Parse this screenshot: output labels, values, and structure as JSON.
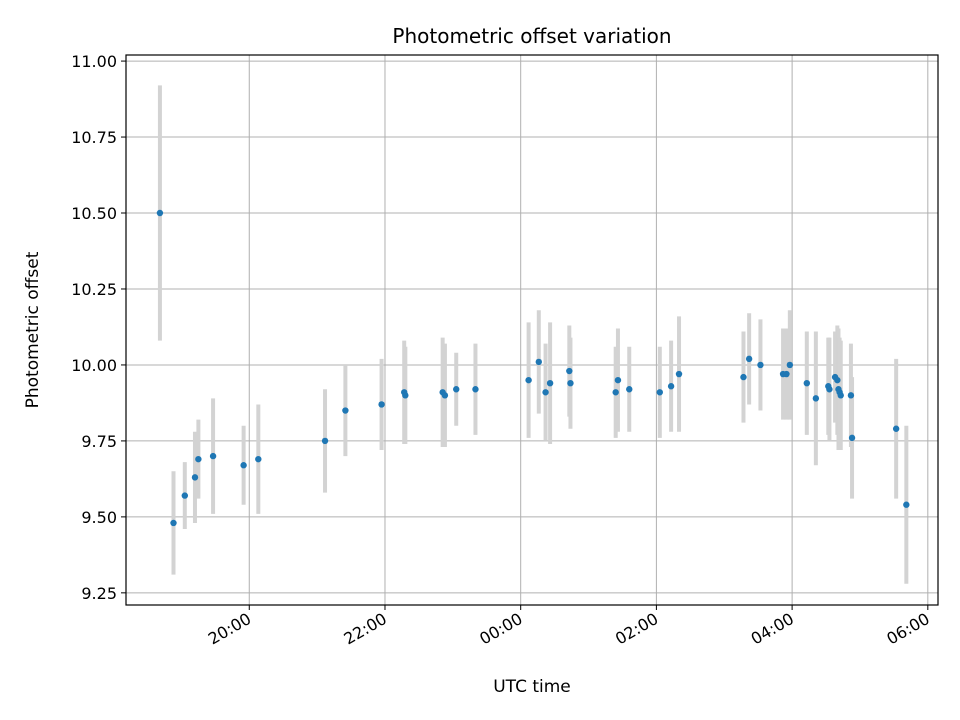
{
  "chart_data": {
    "type": "scatter",
    "title": "Photometric offset variation",
    "xlabel": "UTC time",
    "ylabel": "Photometric offset",
    "x_unit": "UTC date-time",
    "x_tick_labels": [
      "20:00",
      "22:00",
      "00:00",
      "02:00",
      "04:00",
      "06:00"
    ],
    "x_tick_values": [
      "2000-01-01T20:00",
      "2000-01-01T22:00",
      "2000-01-02T00:00",
      "2000-01-02T02:00",
      "2000-01-02T04:00",
      "2000-01-02T06:00"
    ],
    "xlim": [
      "2000-01-01T18:11",
      "2000-01-02T06:09"
    ],
    "y_tick_labels": [
      "9.25",
      "9.50",
      "9.75",
      "10.00",
      "10.25",
      "10.50",
      "10.75",
      "11.00"
    ],
    "y_tick_values": [
      9.25,
      9.5,
      9.75,
      10.0,
      10.25,
      10.5,
      10.75,
      11.0
    ],
    "ylim": [
      9.21,
      11.02
    ],
    "grid": true,
    "point_color": "#1f77b4",
    "errorbar_color": "#d3d3d3",
    "series": [
      {
        "x": [
          "2000-01-01T18:41",
          "2000-01-01T18:53",
          "2000-01-01T19:03",
          "2000-01-01T19:12",
          "2000-01-01T19:15",
          "2000-01-01T19:28",
          "2000-01-01T19:55",
          "2000-01-01T20:08",
          "2000-01-01T21:07",
          "2000-01-01T21:25",
          "2000-01-01T21:57",
          "2000-01-01T22:17",
          "2000-01-01T22:18",
          "2000-01-01T22:51",
          "2000-01-01T22:53",
          "2000-01-01T23:03",
          "2000-01-01T23:20",
          "2000-01-02T00:07",
          "2000-01-02T00:16",
          "2000-01-02T00:22",
          "2000-01-02T00:26",
          "2000-01-02T00:43",
          "2000-01-02T00:44",
          "2000-01-02T01:24",
          "2000-01-02T01:26",
          "2000-01-02T01:36",
          "2000-01-02T02:03",
          "2000-01-02T02:13",
          "2000-01-02T02:20",
          "2000-01-02T03:17",
          "2000-01-02T03:22",
          "2000-01-02T03:32",
          "2000-01-02T03:52",
          "2000-01-02T03:55",
          "2000-01-02T03:58",
          "2000-01-02T04:13",
          "2000-01-02T04:21",
          "2000-01-02T04:32",
          "2000-01-02T04:33",
          "2000-01-02T04:38",
          "2000-01-02T04:40",
          "2000-01-02T04:41",
          "2000-01-02T04:42",
          "2000-01-02T04:43",
          "2000-01-02T04:52",
          "2000-01-02T04:53",
          "2000-01-02T05:32",
          "2000-01-02T05:41"
        ],
        "y": [
          10.5,
          9.48,
          9.57,
          9.63,
          9.69,
          9.7,
          9.67,
          9.69,
          9.75,
          9.85,
          9.87,
          9.91,
          9.9,
          9.91,
          9.9,
          9.92,
          9.92,
          9.95,
          10.01,
          9.91,
          9.94,
          9.98,
          9.94,
          9.91,
          9.95,
          9.92,
          9.91,
          9.93,
          9.97,
          9.96,
          10.02,
          10.0,
          9.97,
          9.97,
          10.0,
          9.94,
          9.89,
          9.93,
          9.92,
          9.96,
          9.95,
          9.92,
          9.91,
          9.9,
          9.9,
          9.76,
          9.79,
          9.54
        ],
        "yerr": [
          0.42,
          0.17,
          0.11,
          0.15,
          0.13,
          0.19,
          0.13,
          0.18,
          0.17,
          0.15,
          0.15,
          0.17,
          0.16,
          0.18,
          0.17,
          0.12,
          0.15,
          0.19,
          0.17,
          0.16,
          0.2,
          0.15,
          0.15,
          0.15,
          0.17,
          0.14,
          0.15,
          0.15,
          0.19,
          0.15,
          0.15,
          0.15,
          0.15,
          0.15,
          0.18,
          0.17,
          0.22,
          0.16,
          0.17,
          0.15,
          0.18,
          0.2,
          0.18,
          0.18,
          0.17,
          0.2,
          0.23,
          0.26
        ]
      }
    ]
  }
}
